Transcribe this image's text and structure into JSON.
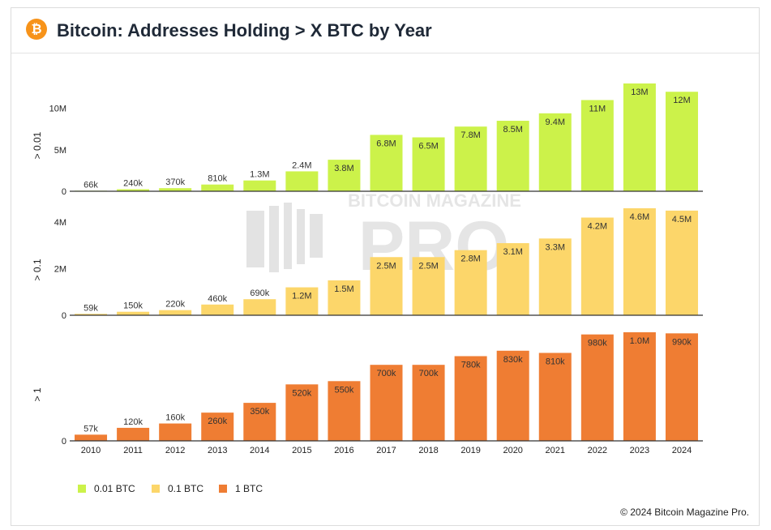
{
  "header": {
    "logo_symbol": "₿",
    "logo_icon": "bitcoin-icon",
    "title": "Bitcoin: Addresses Holding > X BTC by Year",
    "brand_color": "#f7931a"
  },
  "footer": {
    "copyright": "© 2024 Bitcoin Magazine Pro."
  },
  "watermark": {
    "line1": "BITCOIN MAGAZINE",
    "line2": "PRO"
  },
  "chart_data": {
    "type": "bar",
    "categories": [
      "2010",
      "2011",
      "2012",
      "2013",
      "2014",
      "2015",
      "2016",
      "2017",
      "2018",
      "2019",
      "2020",
      "2021",
      "2022",
      "2023",
      "2024"
    ],
    "panels": [
      {
        "ylabel": "> 0.01",
        "ticks": [
          {
            "value": 0,
            "label": "0"
          },
          {
            "value": 5000000,
            "label": "5M"
          },
          {
            "value": 10000000,
            "label": "10M"
          }
        ],
        "ylim": [
          0,
          13000000
        ],
        "series": {
          "name": "0.01 BTC",
          "color": "#ccf24a",
          "values": [
            66000,
            240000,
            370000,
            810000,
            1300000,
            2400000,
            3800000,
            6800000,
            6500000,
            7800000,
            8500000,
            9400000,
            11000000,
            13000000,
            12000000
          ],
          "labels": [
            "66k",
            "240k",
            "370k",
            "810k",
            "1.3M",
            "2.4M",
            "3.8M",
            "6.8M",
            "6.5M",
            "7.8M",
            "8.5M",
            "9.4M",
            "11M",
            "13M",
            "12M"
          ]
        }
      },
      {
        "ylabel": "> 0.1",
        "ticks": [
          {
            "value": 0,
            "label": "0"
          },
          {
            "value": 2000000,
            "label": "2M"
          },
          {
            "value": 4000000,
            "label": "4M"
          }
        ],
        "ylim": [
          0,
          4600000
        ],
        "series": {
          "name": "0.1 BTC",
          "color": "#fcd66a",
          "values": [
            59000,
            150000,
            220000,
            460000,
            690000,
            1200000,
            1500000,
            2500000,
            2500000,
            2800000,
            3100000,
            3300000,
            4200000,
            4600000,
            4500000
          ],
          "labels": [
            "59k",
            "150k",
            "220k",
            "460k",
            "690k",
            "1.2M",
            "1.5M",
            "2.5M",
            "2.5M",
            "2.8M",
            "3.1M",
            "3.3M",
            "4.2M",
            "4.6M",
            "4.5M"
          ]
        }
      },
      {
        "ylabel": "> 1",
        "ticks": [
          {
            "value": 0,
            "label": "0"
          }
        ],
        "ylim": [
          0,
          1000000
        ],
        "series": {
          "name": "1 BTC",
          "color": "#ef7d33",
          "values": [
            57000,
            120000,
            160000,
            260000,
            350000,
            520000,
            550000,
            700000,
            700000,
            780000,
            830000,
            810000,
            980000,
            1000000,
            990000
          ],
          "labels": [
            "57k",
            "120k",
            "160k",
            "260k",
            "350k",
            "520k",
            "550k",
            "700k",
            "700k",
            "780k",
            "830k",
            "810k",
            "980k",
            "1.0M",
            "990k"
          ]
        }
      }
    ],
    "legend": [
      "0.01 BTC",
      "0.1 BTC",
      "1 BTC"
    ],
    "legend_position": "bottom-left",
    "grid": false
  }
}
